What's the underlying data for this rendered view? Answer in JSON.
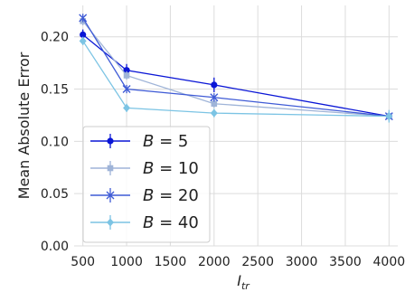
{
  "chart_data": {
    "type": "line",
    "title": "",
    "xlabel": "I",
    "xlabel_sub": "tr",
    "ylabel": "Mean Absolute Error",
    "x": [
      500,
      1000,
      2000,
      4000
    ],
    "xlim": [
      400,
      4100
    ],
    "ylim": [
      0,
      0.23
    ],
    "xticks": [
      500,
      1000,
      1500,
      2000,
      2500,
      3000,
      3500,
      4000
    ],
    "yticks": [
      0.0,
      0.05,
      0.1,
      0.15,
      0.2
    ],
    "ytick_labels": [
      "0.00",
      "0.05",
      "0.10",
      "0.15",
      "0.20"
    ],
    "grid": true,
    "legend_position": "lower-left",
    "series": [
      {
        "name": "B = 5",
        "var": "B",
        "val": "5",
        "color": "#0a16d6",
        "marker": "circle",
        "values": [
          0.202,
          0.168,
          0.154,
          0.124
        ],
        "errors": [
          0.005,
          0.006,
          0.007,
          0.004
        ]
      },
      {
        "name": "B = 10",
        "var": "B",
        "val": "10",
        "color": "#9fb4d8",
        "marker": "square",
        "values": [
          0.215,
          0.163,
          0.136,
          0.124
        ],
        "errors": [
          0.004,
          0.004,
          0.004,
          0.003
        ]
      },
      {
        "name": "B = 20",
        "var": "B",
        "val": "20",
        "color": "#3f5bd6",
        "marker": "x",
        "values": [
          0.218,
          0.15,
          0.142,
          0.124
        ],
        "errors": [
          0.004,
          0.004,
          0.004,
          0.003
        ]
      },
      {
        "name": "B = 40",
        "var": "B",
        "val": "40",
        "color": "#7cc4e4",
        "marker": "diamond",
        "values": [
          0.196,
          0.132,
          0.127,
          0.124
        ],
        "errors": [
          0.004,
          0.004,
          0.004,
          0.006
        ]
      }
    ]
  }
}
